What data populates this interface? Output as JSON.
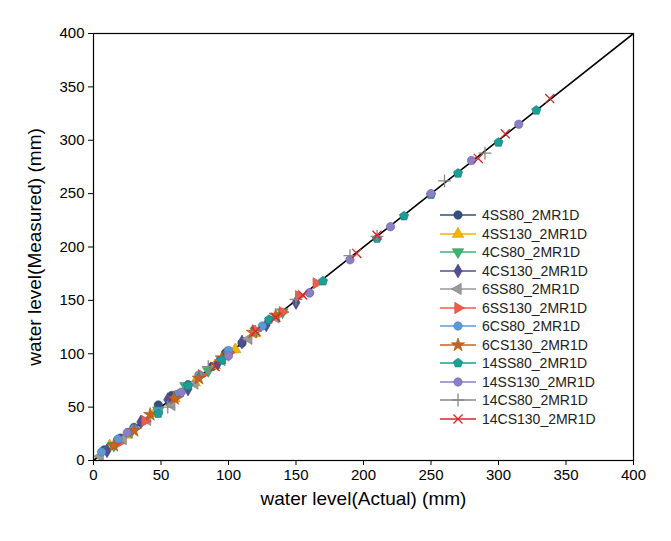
{
  "chart_data": {
    "type": "scatter",
    "xlabel": "water level(Actual) (mm)",
    "ylabel": "water level(Measured) (mm)",
    "xlim": [
      0,
      400
    ],
    "ylim": [
      0,
      400
    ],
    "xticks": [
      0,
      50,
      100,
      150,
      200,
      250,
      300,
      350,
      400
    ],
    "yticks": [
      0,
      50,
      100,
      150,
      200,
      250,
      300,
      350,
      400
    ],
    "grid": false,
    "legend": "right",
    "reference_line": {
      "x": [
        0,
        400
      ],
      "values": [
        0,
        400
      ],
      "color": "#000000"
    },
    "series": [
      {
        "name": "4SS80_2MR1D",
        "color": "#33507f",
        "marker": "circle",
        "x": [
          8,
          20,
          30,
          48,
          58,
          70,
          88,
          98,
          110
        ],
        "values": [
          10,
          21,
          31,
          52,
          61,
          71,
          88,
          101,
          110
        ]
      },
      {
        "name": "4SS130_2MR1D",
        "color": "#f5b400",
        "marker": "triangle",
        "x": [
          12,
          25,
          45,
          60,
          75,
          90,
          105,
          120
        ],
        "values": [
          14,
          24,
          44,
          58,
          73,
          89,
          104,
          119
        ]
      },
      {
        "name": "4CS80_2MR1D",
        "color": "#3cb371",
        "marker": "triangle-down",
        "x": [
          15,
          28,
          48,
          68,
          85,
          100,
          120,
          140
        ],
        "values": [
          14,
          27,
          47,
          70,
          84,
          99,
          121,
          139
        ]
      },
      {
        "name": "4CS130_2MR1D",
        "color": "#4f4f94",
        "marker": "diamond",
        "x": [
          10,
          35,
          55,
          70,
          92,
          110,
          128,
          150
        ],
        "values": [
          9,
          36,
          57,
          67,
          91,
          111,
          127,
          148
        ]
      },
      {
        "name": "6SS80_2MR1D",
        "color": "#9a9a9a",
        "marker": "triangle-left",
        "x": [
          5,
          22,
          40,
          58,
          75,
          95,
          115,
          135
        ],
        "values": [
          4,
          20,
          38,
          52,
          72,
          94,
          114,
          134
        ]
      },
      {
        "name": "6SS130_2MR1D",
        "color": "#f25a4a",
        "marker": "triangle-right",
        "x": [
          18,
          38,
          62,
          80,
          100,
          120,
          140,
          152,
          165
        ],
        "values": [
          16,
          37,
          60,
          80,
          101,
          122,
          139,
          154,
          166
        ]
      },
      {
        "name": "6CS80_2MR1D",
        "color": "#5b9bd5",
        "marker": "circle",
        "x": [
          6,
          18,
          30,
          48,
          62,
          78,
          100,
          125,
          160
        ],
        "values": [
          8,
          20,
          30,
          46,
          62,
          80,
          103,
          126,
          157
        ]
      },
      {
        "name": "6CS130_2MR1D",
        "color": "#c8641e",
        "marker": "star",
        "x": [
          15,
          30,
          42,
          60,
          78,
          95,
          118,
          135
        ],
        "values": [
          14,
          28,
          43,
          58,
          77,
          96,
          120,
          136
        ]
      },
      {
        "name": "14SS80_2MR1D",
        "color": "#1a9e96",
        "marker": "pentagon",
        "x": [
          48,
          70,
          95,
          130,
          170,
          210,
          230,
          250,
          270,
          300,
          328
        ],
        "values": [
          44,
          70,
          94,
          132,
          168,
          208,
          229,
          249,
          269,
          298,
          328
        ]
      },
      {
        "name": "14SS130_2MR1D",
        "color": "#8a7fc8",
        "marker": "circle",
        "x": [
          25,
          65,
          100,
          160,
          190,
          220,
          250,
          280,
          315
        ],
        "values": [
          26,
          64,
          98,
          157,
          188,
          219,
          250,
          281,
          315
        ]
      },
      {
        "name": "14CS80_2MR1D",
        "color": "#888888",
        "marker": "plus",
        "x": [
          55,
          85,
          120,
          150,
          190,
          210,
          260,
          290
        ],
        "values": [
          50,
          88,
          121,
          151,
          192,
          210,
          262,
          288
        ]
      },
      {
        "name": "14CS130_2MR1D",
        "color": "#d62728",
        "marker": "x",
        "x": [
          90,
          120,
          135,
          155,
          195,
          210,
          285,
          305,
          338
        ],
        "values": [
          88,
          121,
          134,
          155,
          194,
          211,
          283,
          306,
          339
        ]
      }
    ]
  }
}
